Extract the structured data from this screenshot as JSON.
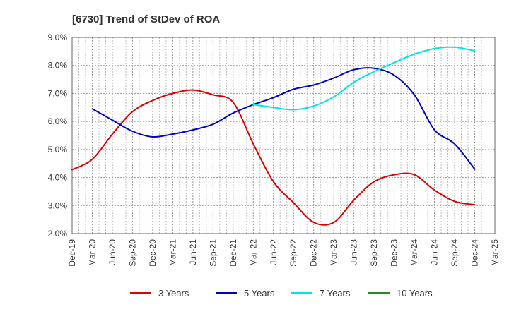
{
  "chart_data": {
    "type": "line",
    "title": "[6730]  Trend of StDev of ROA",
    "xlabel": "",
    "ylabel": "",
    "x_ticks": [
      "Dec-19",
      "Mar-20",
      "Jun-20",
      "Sep-20",
      "Dec-20",
      "Mar-21",
      "Jun-21",
      "Sep-21",
      "Dec-21",
      "Mar-22",
      "Jun-22",
      "Sep-22",
      "Dec-22",
      "Mar-23",
      "Jun-23",
      "Sep-23",
      "Dec-23",
      "Mar-24",
      "Jun-24",
      "Sep-24",
      "Dec-24",
      "Mar-25"
    ],
    "y_ticks": [
      "2.0%",
      "3.0%",
      "4.0%",
      "5.0%",
      "6.0%",
      "7.0%",
      "8.0%",
      "9.0%"
    ],
    "ylim": [
      2.0,
      9.0
    ],
    "grid": true,
    "legend_position": "bottom",
    "series": [
      {
        "name": "3 Years",
        "color": "#dd0000",
        "points": [
          [
            "Dec-19",
            4.28
          ],
          [
            "Mar-20",
            4.65
          ],
          [
            "Jun-20",
            5.55
          ],
          [
            "Sep-20",
            6.35
          ],
          [
            "Dec-20",
            6.75
          ],
          [
            "Mar-21",
            7.0
          ],
          [
            "Jun-21",
            7.12
          ],
          [
            "Sep-21",
            6.95
          ],
          [
            "Dec-21",
            6.68
          ],
          [
            "Mar-22",
            5.2
          ],
          [
            "Jun-22",
            3.85
          ],
          [
            "Sep-22",
            3.1
          ],
          [
            "Dec-22",
            2.4
          ],
          [
            "Mar-23",
            2.4
          ],
          [
            "Jun-23",
            3.2
          ],
          [
            "Sep-23",
            3.85
          ],
          [
            "Dec-23",
            4.1
          ],
          [
            "Mar-24",
            4.1
          ],
          [
            "Jun-24",
            3.55
          ],
          [
            "Sep-24",
            3.15
          ],
          [
            "Dec-24",
            3.03
          ]
        ]
      },
      {
        "name": "5 Years",
        "color": "#0000cc",
        "points": [
          [
            "Mar-20",
            6.45
          ],
          [
            "Jun-20",
            6.05
          ],
          [
            "Sep-20",
            5.65
          ],
          [
            "Dec-20",
            5.45
          ],
          [
            "Mar-21",
            5.55
          ],
          [
            "Jun-21",
            5.7
          ],
          [
            "Sep-21",
            5.9
          ],
          [
            "Dec-21",
            6.3
          ],
          [
            "Mar-22",
            6.6
          ],
          [
            "Jun-22",
            6.85
          ],
          [
            "Sep-22",
            7.15
          ],
          [
            "Dec-22",
            7.3
          ],
          [
            "Mar-23",
            7.55
          ],
          [
            "Jun-23",
            7.85
          ],
          [
            "Sep-23",
            7.9
          ],
          [
            "Dec-23",
            7.65
          ],
          [
            "Mar-24",
            6.95
          ],
          [
            "Jun-24",
            5.7
          ],
          [
            "Sep-24",
            5.2
          ],
          [
            "Dec-24",
            4.3
          ]
        ]
      },
      {
        "name": "7 Years",
        "color": "#00e5e5",
        "points": [
          [
            "Mar-22",
            6.6
          ],
          [
            "Jun-22",
            6.5
          ],
          [
            "Sep-22",
            6.42
          ],
          [
            "Dec-22",
            6.55
          ],
          [
            "Mar-23",
            6.88
          ],
          [
            "Jun-23",
            7.4
          ],
          [
            "Sep-23",
            7.78
          ],
          [
            "Dec-23",
            8.1
          ],
          [
            "Mar-24",
            8.4
          ],
          [
            "Jun-24",
            8.6
          ],
          [
            "Sep-24",
            8.65
          ],
          [
            "Dec-24",
            8.52
          ]
        ]
      },
      {
        "name": "10 Years",
        "color": "#228b22",
        "points": []
      }
    ]
  }
}
